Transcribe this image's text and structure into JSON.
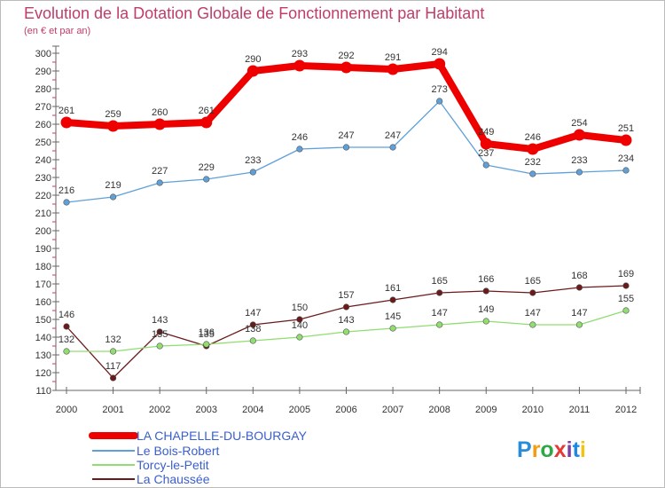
{
  "chart_data": {
    "type": "line",
    "title": "Evolution de la Dotation Globale de Fonctionnement par Habitant",
    "subtitle": "(en € et par an)",
    "xlabel": "",
    "ylabel": "",
    "x": [
      "2000",
      "2001",
      "2002",
      "2003",
      "2004",
      "2005",
      "2006",
      "2007",
      "2008",
      "2009",
      "2010",
      "2011",
      "2012"
    ],
    "ylim": [
      110,
      300
    ],
    "yticks": [
      110,
      120,
      130,
      140,
      150,
      160,
      170,
      180,
      190,
      200,
      210,
      220,
      230,
      240,
      250,
      260,
      270,
      280,
      290,
      300
    ],
    "grid": false,
    "legend_position": "bottom-left",
    "series": [
      {
        "name": "LA CHAPELLE-DU-BOURGAY",
        "color": "#ee0000",
        "values": [
          261,
          259,
          260,
          261,
          290,
          293,
          292,
          291,
          294,
          249,
          246,
          254,
          251
        ]
      },
      {
        "name": "Le Bois-Robert",
        "color": "#5fa0d8",
        "values": [
          216,
          219,
          227,
          229,
          233,
          246,
          247,
          247,
          273,
          237,
          232,
          233,
          234
        ]
      },
      {
        "name": "Torcy-le-Petit",
        "color": "#90dd70",
        "values": [
          132,
          132,
          135,
          136,
          138,
          140,
          143,
          145,
          147,
          149,
          147,
          147,
          155
        ]
      },
      {
        "name": "La Chaussée",
        "color": "#6b1a1a",
        "values": [
          146,
          117,
          143,
          135,
          147,
          150,
          157,
          161,
          165,
          166,
          165,
          168,
          169
        ]
      }
    ]
  },
  "brand": {
    "text": "Proxiti",
    "colors": [
      "#2a8bd8",
      "#f39c12",
      "#2ea845",
      "#e53935",
      "#7b3fa0",
      "#1e88e5",
      "#f1c40f"
    ]
  }
}
